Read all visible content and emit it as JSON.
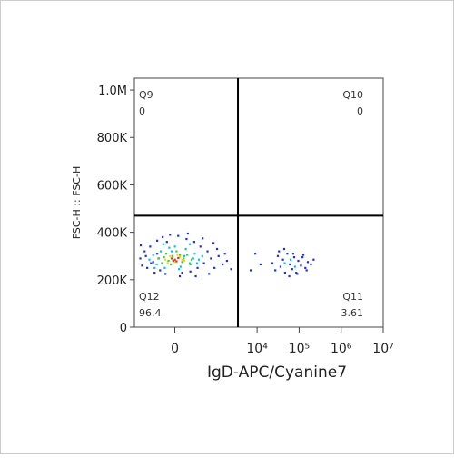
{
  "chart_data": {
    "type": "scatter",
    "xlabel": "IgD-APC/Cyanine7",
    "ylabel": "FSC-H :: FSC-H",
    "xscale": "asinh",
    "xlim": [
      -1000,
      10000000
    ],
    "ylim": [
      0,
      1050000
    ],
    "xticks": [
      0,
      {
        "value": 10000,
        "label": "10⁴"
      },
      {
        "value": 100000,
        "label": "10⁵"
      },
      {
        "value": 1000000,
        "label": "10⁶"
      },
      {
        "value": 10000000,
        "label": "10⁷"
      }
    ],
    "yticks": [
      0,
      {
        "value": 200000,
        "label": "200K"
      },
      {
        "value": 400000,
        "label": "400K"
      },
      {
        "value": 600000,
        "label": "600K"
      },
      {
        "value": 800000,
        "label": "800K"
      },
      {
        "value": 1000000,
        "label": "1.0M"
      }
    ],
    "gate": {
      "x": 3500,
      "y": 470000
    },
    "quadrants": [
      {
        "name": "Q9",
        "value": 0,
        "corner": "top-left"
      },
      {
        "name": "Q10",
        "value": 0,
        "corner": "top-right"
      },
      {
        "name": "Q11",
        "value": 3.61,
        "corner": "bottom-right"
      },
      {
        "name": "Q12",
        "value": 96.4,
        "corner": "bottom-left"
      }
    ],
    "series": [
      {
        "color": "#1f2fe0",
        "x": [
          -720,
          -650,
          -560,
          -480,
          -400,
          -330,
          -300,
          -250,
          -200,
          -160,
          -120,
          -60,
          40,
          90,
          150,
          210,
          280,
          350,
          420,
          520,
          640,
          780,
          950,
          1200,
          1500,
          1900,
          2400,
          -700,
          -520,
          -380,
          -250,
          310,
          480,
          700,
          1100,
          60,
          -100,
          170,
          900,
          1700,
          23000,
          27000,
          31000,
          36000,
          41000,
          46000,
          52000,
          60000,
          68000,
          76000,
          85000,
          95000,
          110000,
          125000,
          140000,
          160000,
          190000,
          220000,
          33000,
          44000,
          58000,
          72000,
          90000,
          120000,
          150000,
          9000,
          12000,
          7000
        ],
        "y": [
          290000,
          260000,
          320000,
          250000,
          340000,
          275000,
          230000,
          365000,
          240000,
          380000,
          225000,
          390000,
          385000,
          230000,
          372000,
          235000,
          360000,
          250000,
          340000,
          270000,
          320000,
          290000,
          250000,
          300000,
          265000,
          280000,
          245000,
          345000,
          300000,
          270000,
          310000,
          215000,
          375000,
          225000,
          330000,
          215000,
          360000,
          395000,
          355000,
          310000,
          270000,
          240000,
          300000,
          255000,
          285000,
          230000,
          310000,
          265000,
          245000,
          295000,
          230000,
          280000,
          260000,
          305000,
          250000,
          275000,
          265000,
          285000,
          320000,
          330000,
          215000,
          310000,
          225000,
          295000,
          240000,
          310000,
          265000,
          240000
        ]
      },
      {
        "color": "#00c4ee",
        "x": [
          -420,
          -330,
          -260,
          -190,
          -130,
          -70,
          0,
          70,
          140,
          210,
          290,
          380,
          470,
          -300,
          -150,
          50,
          200,
          340,
          -220,
          -40,
          120,
          260,
          45000,
          62000,
          80000
        ],
        "y": [
          285000,
          305000,
          265000,
          320000,
          250000,
          335000,
          340000,
          255000,
          330000,
          265000,
          310000,
          285000,
          300000,
          250000,
          350000,
          245000,
          350000,
          270000,
          290000,
          320000,
          300000,
          290000,
          270000,
          285000,
          255000
        ]
      },
      {
        "color": "#34d03a",
        "x": [
          -230,
          -170,
          -110,
          -50,
          20,
          90,
          160,
          230,
          -140,
          -30,
          110,
          200,
          -80,
          60
        ],
        "y": [
          290000,
          270000,
          310000,
          265000,
          320000,
          275000,
          305000,
          285000,
          295000,
          300000,
          290000,
          270000,
          280000,
          305000
        ]
      },
      {
        "color": "#f0d818",
        "x": [
          -120,
          -60,
          0,
          60,
          120,
          -90,
          30,
          90
        ],
        "y": [
          285000,
          300000,
          275000,
          295000,
          280000,
          270000,
          305000,
          285000
        ]
      },
      {
        "color": "#e8301a",
        "x": [
          -40,
          0,
          40,
          -20,
          20
        ],
        "y": [
          290000,
          285000,
          292000,
          280000,
          278000
        ]
      }
    ]
  }
}
